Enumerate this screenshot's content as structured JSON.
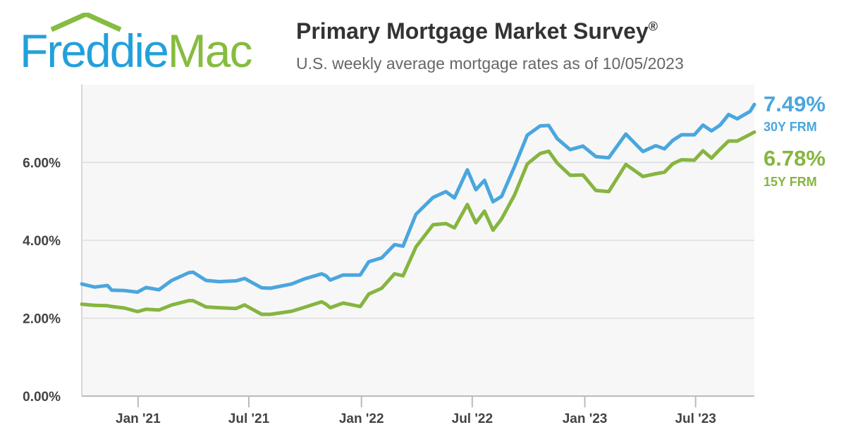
{
  "header": {
    "logo_text_1": "Freddie",
    "logo_text_2": "Mac",
    "title": "Primary Mortgage Market Survey",
    "title_mark": "®",
    "subtitle": "U.S. weekly average mortgage rates as of 10/05/2023"
  },
  "colors": {
    "brand_blue": "#23a0db",
    "brand_green": "#86bc3f",
    "series_30y": "#4aa6de",
    "series_15y": "#86b540",
    "plot_bg": "#f7f7f7",
    "grid": "#dddddd"
  },
  "labels": {
    "rate_30y": "7.49%",
    "name_30y": "30Y FRM",
    "rate_15y": "6.78%",
    "name_15y": "15Y FRM"
  },
  "chart_data": {
    "type": "line",
    "title": "Primary Mortgage Market Survey",
    "subtitle": "U.S. weekly average mortgage rates as of 10/05/2023",
    "x_range": [
      "2020-10-01",
      "2023-10-05"
    ],
    "ylim": [
      0,
      8
    ],
    "y_ticks": [
      0,
      2,
      4,
      6
    ],
    "y_tick_labels": [
      "0.00%",
      "2.00%",
      "4.00%",
      "6.00%"
    ],
    "x_ticks": [
      "2021-01-01",
      "2021-07-01",
      "2022-01-01",
      "2022-07-01",
      "2023-01-01",
      "2023-07-01"
    ],
    "x_tick_labels": [
      "Jan '21",
      "Jul '21",
      "Jan '22",
      "Jul '22",
      "Jan '23",
      "Jul '23"
    ],
    "grid": "horizontal",
    "series": [
      {
        "name": "30Y FRM",
        "last_value": "7.49%",
        "points": [
          [
            "2020-10-01",
            2.88
          ],
          [
            "2020-10-22",
            2.8
          ],
          [
            "2020-11-12",
            2.84
          ],
          [
            "2020-11-19",
            2.72
          ],
          [
            "2020-12-10",
            2.71
          ],
          [
            "2020-12-31",
            2.67
          ],
          [
            "2021-01-14",
            2.79
          ],
          [
            "2021-02-04",
            2.73
          ],
          [
            "2021-02-25",
            2.97
          ],
          [
            "2021-03-25",
            3.17
          ],
          [
            "2021-04-01",
            3.18
          ],
          [
            "2021-04-22",
            2.97
          ],
          [
            "2021-05-13",
            2.94
          ],
          [
            "2021-06-10",
            2.96
          ],
          [
            "2021-06-24",
            3.02
          ],
          [
            "2021-07-22",
            2.78
          ],
          [
            "2021-08-05",
            2.77
          ],
          [
            "2021-09-09",
            2.88
          ],
          [
            "2021-09-30",
            3.01
          ],
          [
            "2021-10-28",
            3.14
          ],
          [
            "2021-11-04",
            3.09
          ],
          [
            "2021-11-11",
            2.98
          ],
          [
            "2021-12-02",
            3.11
          ],
          [
            "2021-12-30",
            3.11
          ],
          [
            "2022-01-13",
            3.45
          ],
          [
            "2022-02-03",
            3.55
          ],
          [
            "2022-02-24",
            3.89
          ],
          [
            "2022-03-10",
            3.85
          ],
          [
            "2022-03-31",
            4.67
          ],
          [
            "2022-04-28",
            5.1
          ],
          [
            "2022-05-19",
            5.25
          ],
          [
            "2022-06-02",
            5.09
          ],
          [
            "2022-06-23",
            5.81
          ],
          [
            "2022-07-07",
            5.3
          ],
          [
            "2022-07-21",
            5.54
          ],
          [
            "2022-08-04",
            4.99
          ],
          [
            "2022-08-18",
            5.13
          ],
          [
            "2022-09-08",
            5.89
          ],
          [
            "2022-09-29",
            6.7
          ],
          [
            "2022-10-20",
            6.94
          ],
          [
            "2022-11-03",
            6.95
          ],
          [
            "2022-11-17",
            6.61
          ],
          [
            "2022-12-08",
            6.33
          ],
          [
            "2022-12-29",
            6.42
          ],
          [
            "2023-01-19",
            6.15
          ],
          [
            "2023-02-09",
            6.12
          ],
          [
            "2023-03-09",
            6.73
          ],
          [
            "2023-04-06",
            6.28
          ],
          [
            "2023-04-27",
            6.43
          ],
          [
            "2023-05-11",
            6.35
          ],
          [
            "2023-05-25",
            6.57
          ],
          [
            "2023-06-08",
            6.71
          ],
          [
            "2023-06-29",
            6.71
          ],
          [
            "2023-07-13",
            6.96
          ],
          [
            "2023-07-27",
            6.81
          ],
          [
            "2023-08-10",
            6.96
          ],
          [
            "2023-08-24",
            7.23
          ],
          [
            "2023-09-07",
            7.12
          ],
          [
            "2023-09-28",
            7.31
          ],
          [
            "2023-10-05",
            7.49
          ]
        ]
      },
      {
        "name": "15Y FRM",
        "last_value": "6.78%",
        "points": [
          [
            "2020-10-01",
            2.36
          ],
          [
            "2020-10-22",
            2.33
          ],
          [
            "2020-11-12",
            2.32
          ],
          [
            "2020-11-19",
            2.3
          ],
          [
            "2020-12-10",
            2.26
          ],
          [
            "2020-12-31",
            2.17
          ],
          [
            "2021-01-14",
            2.23
          ],
          [
            "2021-02-04",
            2.21
          ],
          [
            "2021-02-25",
            2.34
          ],
          [
            "2021-03-25",
            2.45
          ],
          [
            "2021-04-01",
            2.45
          ],
          [
            "2021-04-22",
            2.29
          ],
          [
            "2021-05-13",
            2.27
          ],
          [
            "2021-06-10",
            2.25
          ],
          [
            "2021-06-24",
            2.34
          ],
          [
            "2021-07-22",
            2.1
          ],
          [
            "2021-08-05",
            2.1
          ],
          [
            "2021-09-09",
            2.18
          ],
          [
            "2021-09-30",
            2.28
          ],
          [
            "2021-10-28",
            2.42
          ],
          [
            "2021-11-04",
            2.36
          ],
          [
            "2021-11-11",
            2.27
          ],
          [
            "2021-12-02",
            2.39
          ],
          [
            "2021-12-30",
            2.3
          ],
          [
            "2022-01-13",
            2.62
          ],
          [
            "2022-02-03",
            2.77
          ],
          [
            "2022-02-24",
            3.14
          ],
          [
            "2022-03-10",
            3.09
          ],
          [
            "2022-03-31",
            3.83
          ],
          [
            "2022-04-28",
            4.4
          ],
          [
            "2022-05-19",
            4.43
          ],
          [
            "2022-06-02",
            4.32
          ],
          [
            "2022-06-23",
            4.92
          ],
          [
            "2022-07-07",
            4.45
          ],
          [
            "2022-07-21",
            4.75
          ],
          [
            "2022-08-04",
            4.26
          ],
          [
            "2022-08-18",
            4.55
          ],
          [
            "2022-09-08",
            5.16
          ],
          [
            "2022-09-29",
            5.96
          ],
          [
            "2022-10-20",
            6.23
          ],
          [
            "2022-11-03",
            6.29
          ],
          [
            "2022-11-17",
            5.98
          ],
          [
            "2022-12-08",
            5.67
          ],
          [
            "2022-12-29",
            5.68
          ],
          [
            "2023-01-19",
            5.28
          ],
          [
            "2023-02-09",
            5.25
          ],
          [
            "2023-03-09",
            5.95
          ],
          [
            "2023-04-06",
            5.64
          ],
          [
            "2023-04-27",
            5.71
          ],
          [
            "2023-05-11",
            5.75
          ],
          [
            "2023-05-25",
            5.97
          ],
          [
            "2023-06-08",
            6.07
          ],
          [
            "2023-06-29",
            6.06
          ],
          [
            "2023-07-13",
            6.3
          ],
          [
            "2023-07-27",
            6.11
          ],
          [
            "2023-08-10",
            6.34
          ],
          [
            "2023-08-24",
            6.55
          ],
          [
            "2023-09-07",
            6.55
          ],
          [
            "2023-09-28",
            6.72
          ],
          [
            "2023-10-05",
            6.78
          ]
        ]
      }
    ]
  }
}
